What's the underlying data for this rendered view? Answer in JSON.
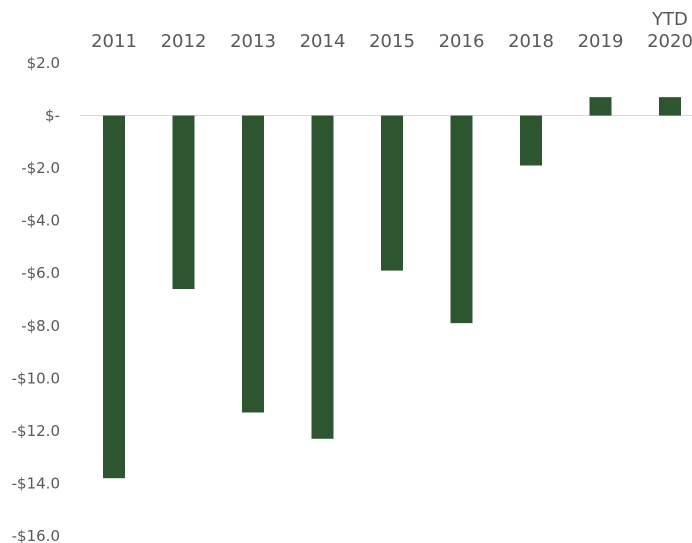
{
  "chart_data": {
    "type": "bar",
    "categories": [
      "2011",
      "2012",
      "2013",
      "2014",
      "2015",
      "2016",
      "2018",
      "2019",
      "YTD 2020"
    ],
    "category_lines": [
      [
        "2011"
      ],
      [
        "2012"
      ],
      [
        "2013"
      ],
      [
        "2014"
      ],
      [
        "2015"
      ],
      [
        "2016"
      ],
      [
        "2018"
      ],
      [
        "2019"
      ],
      [
        "YTD",
        "2020"
      ]
    ],
    "values": [
      -13.8,
      -6.6,
      -11.3,
      -12.3,
      -5.9,
      -7.9,
      -1.9,
      0.7,
      0.7
    ],
    "ylim": [
      -16,
      2
    ],
    "yticks": [
      2,
      0,
      -2,
      -4,
      -6,
      -8,
      -10,
      -12,
      -14,
      -16
    ],
    "ytick_labels": [
      "$2.0",
      "$-",
      "-$2.0",
      "-$4.0",
      "-$6.0",
      "-$8.0",
      "-$10.0",
      "-$12.0",
      "-$14.0",
      "-$16.0"
    ],
    "category_axis_position": "top",
    "grid": false,
    "legend": "none",
    "bar_color": "#2c5530",
    "zero_line_color": "#d9d9d9",
    "text_color": "#595959"
  }
}
